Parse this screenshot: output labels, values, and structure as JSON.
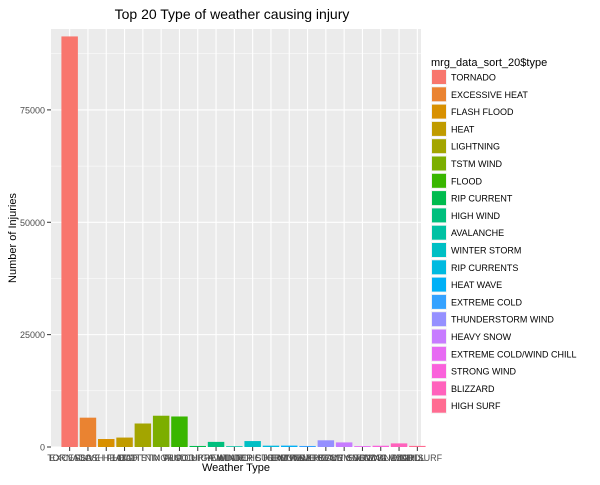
{
  "chart_data": {
    "type": "bar",
    "title": "Top 20 Type of weather causing injury",
    "xlabel": "Weather Type",
    "ylabel": "Number of Injuries",
    "ylim": [
      0,
      93000
    ],
    "yticks": [
      0,
      25000,
      50000,
      75000
    ],
    "ytick_labels": [
      "0",
      "25000",
      "50000",
      "75000"
    ],
    "grid": true,
    "legend": {
      "title": "mrg_data_sort_20$type",
      "position": "right"
    },
    "categories": [
      "TORNADO",
      "EXCESSIVE HEAT",
      "FLASH FLOOD",
      "HEAT",
      "LIGHTNING",
      "TSTM WIND",
      "FLOOD",
      "RIP CURRENT",
      "HIGH WIND",
      "AVALANCHE",
      "WINTER STORM",
      "RIP CURRENTS",
      "HEAT WAVE",
      "EXTREME COLD",
      "THUNDERSTORM WIND",
      "HEAVY SNOW",
      "EXTREME COLD/WIND CHILL",
      "STRONG WIND",
      "BLIZZARD",
      "HIGH SURF"
    ],
    "values": [
      91346,
      6525,
      1777,
      2100,
      5230,
      6957,
      6789,
      232,
      1137,
      170,
      1321,
      297,
      309,
      231,
      1488,
      1021,
      198,
      280,
      805,
      246
    ],
    "colors": [
      "#F8766D",
      "#EA8331",
      "#D89000",
      "#C09B00",
      "#A3A500",
      "#7CAE00",
      "#39B600",
      "#00BB4E",
      "#00BF7D",
      "#00C1A3",
      "#00BFC4",
      "#00BAE0",
      "#00B0F6",
      "#35A2FF",
      "#9590FF",
      "#C77CFF",
      "#E76BF3",
      "#FA62DB",
      "#FF62BC",
      "#FF6C91"
    ]
  }
}
